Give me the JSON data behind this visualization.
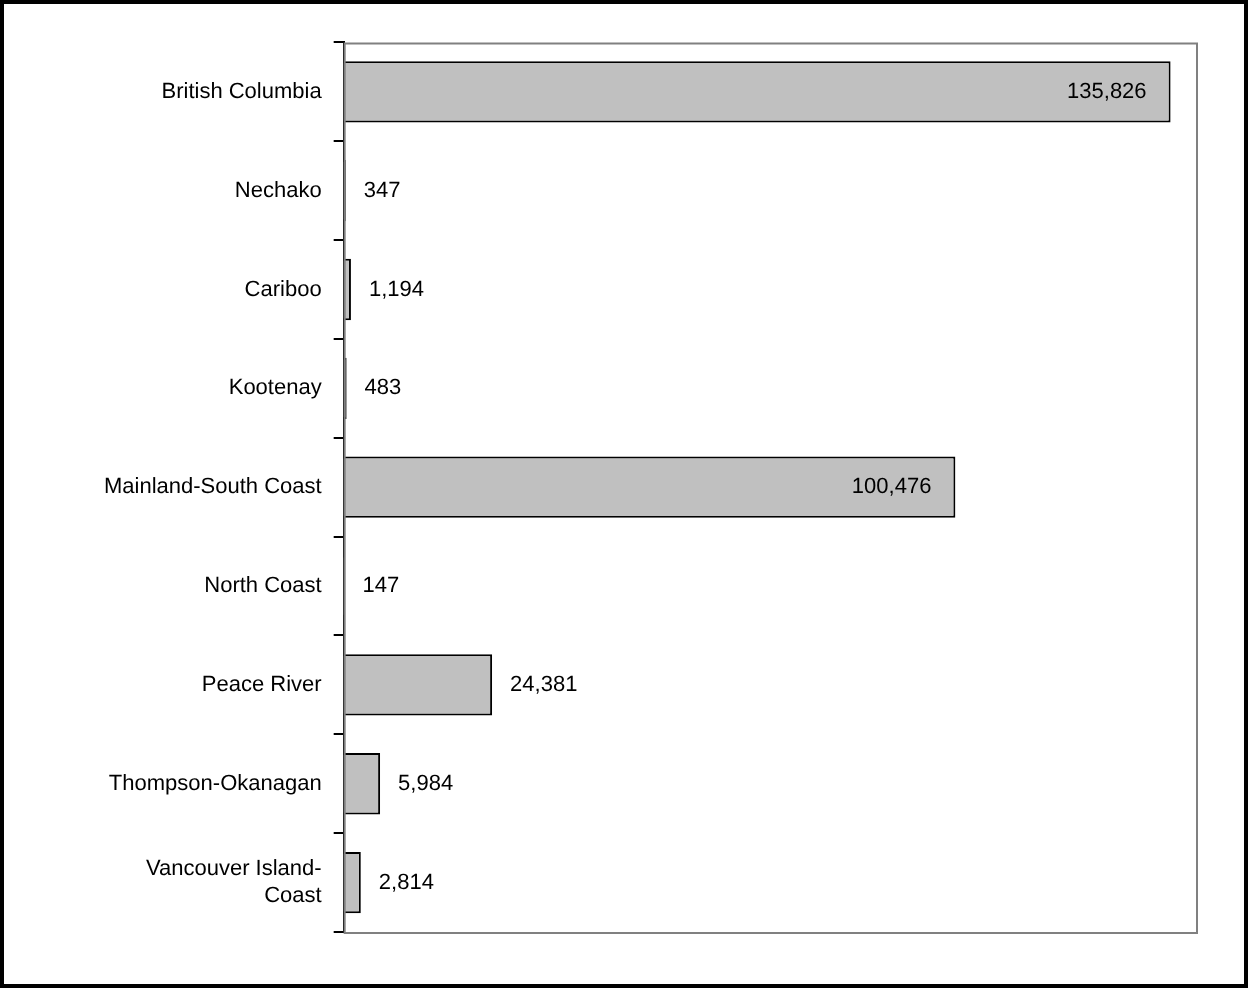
{
  "chart_data": {
    "type": "bar",
    "orientation": "horizontal",
    "categories": [
      "British Columbia",
      "Nechako",
      "Cariboo",
      "Kootenay",
      "Mainland-South Coast",
      "North Coast",
      "Peace River",
      "Thompson-Okanagan",
      "Vancouver Island-Coast"
    ],
    "values": [
      135826,
      347,
      1194,
      483,
      100476,
      147,
      24381,
      5984,
      2814
    ],
    "color": "#c0c0c0",
    "value_labels": [
      "135,826",
      "347",
      "1,194",
      "483",
      "100,476",
      "147",
      "24,381",
      "5,984",
      "2,814"
    ]
  }
}
